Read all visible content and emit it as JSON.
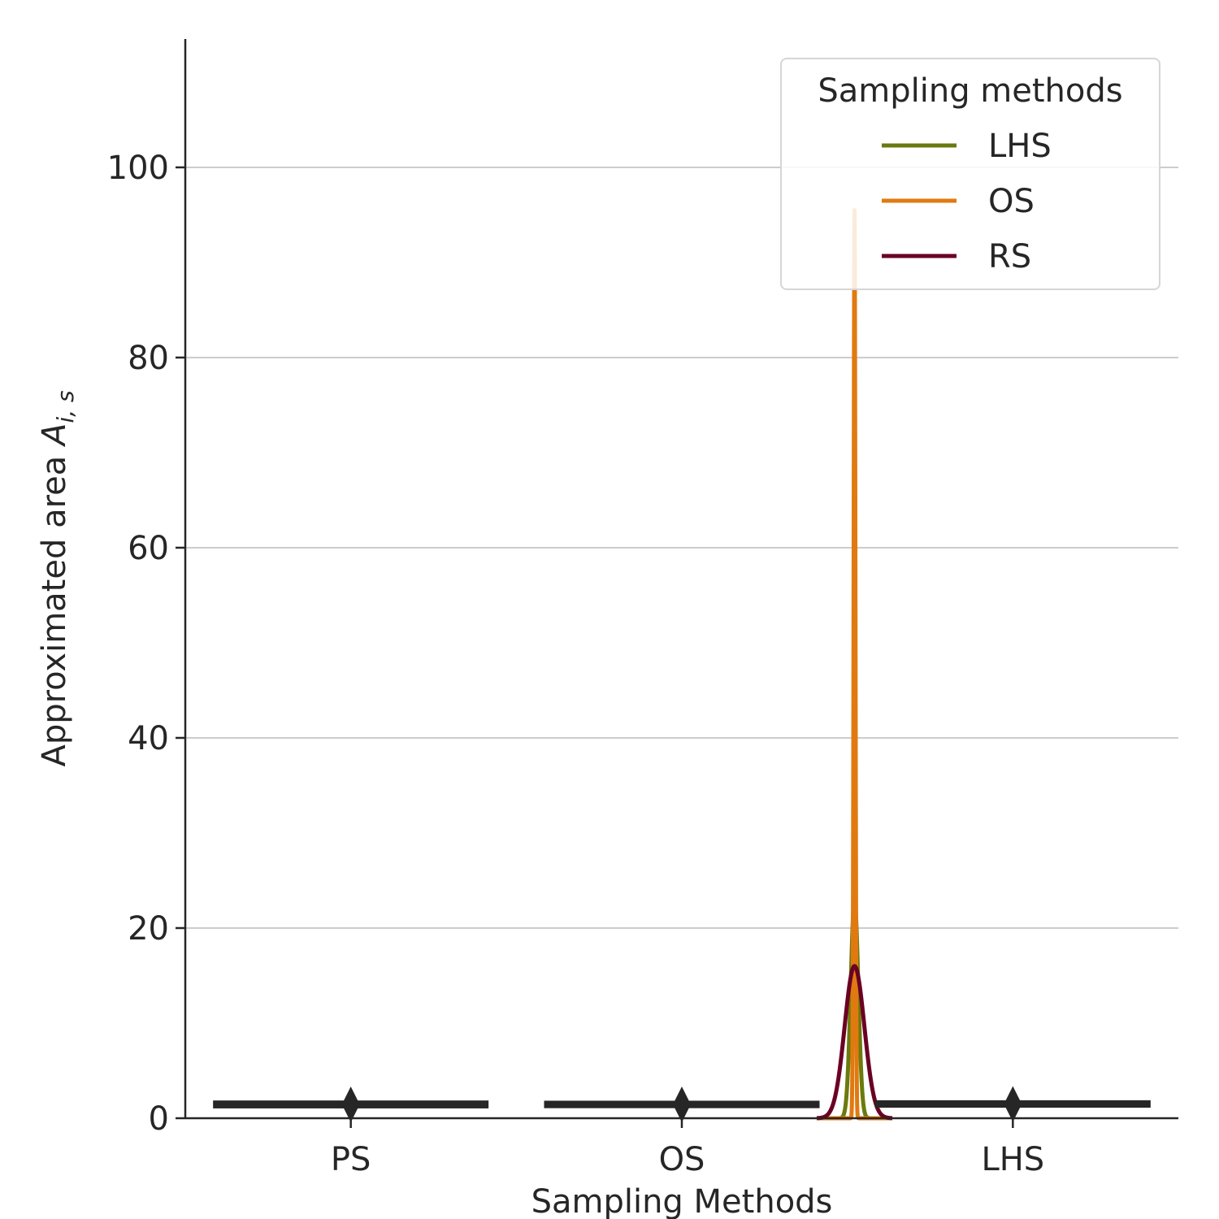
{
  "chart_data": {
    "type": "boxplot",
    "xlabel": "Sampling Methods",
    "ylabel": "Approximated area",
    "ylabel_symbol": "A",
    "ylabel_subscript": "i, s",
    "ylim": [
      0,
      113.5
    ],
    "yticks": [
      0,
      20,
      40,
      60,
      80,
      100
    ],
    "grid": "horizontal",
    "categories": [
      "PS",
      "OS",
      "LHS"
    ],
    "boxes": [
      {
        "category": "PS",
        "median": 1.45,
        "spread": 0.15,
        "flier": 1.45
      },
      {
        "category": "OS",
        "median": 1.45,
        "spread": 0.1,
        "flier": 1.45
      },
      {
        "category": "LHS",
        "median": 1.5,
        "spread": 0.1,
        "flier": 1.5
      }
    ],
    "legend": {
      "title": "Sampling methods",
      "position": "upper right",
      "entries": [
        {
          "label": "LHS",
          "color": "#6b7a0e"
        },
        {
          "label": "OS",
          "color": "#e07a10"
        },
        {
          "label": "RS",
          "color": "#6a0023"
        }
      ]
    },
    "density_curves": [
      {
        "name": "LHS",
        "color": "#6b7a0e",
        "center": 1.5,
        "peak": 23,
        "sigma": 0.05
      },
      {
        "name": "OS",
        "color": "#e07a10",
        "center": 1.5,
        "peak": 95.5,
        "sigma": 0.012
      },
      {
        "name": "RS",
        "color": "#6a0023",
        "center": 1.5,
        "peak": 16,
        "sigma": 0.13
      }
    ],
    "density_x_range": [
      1.0,
      2.0
    ],
    "colors": {
      "axis": "#262626",
      "grid": "#cccccc",
      "box": "#262626"
    }
  }
}
